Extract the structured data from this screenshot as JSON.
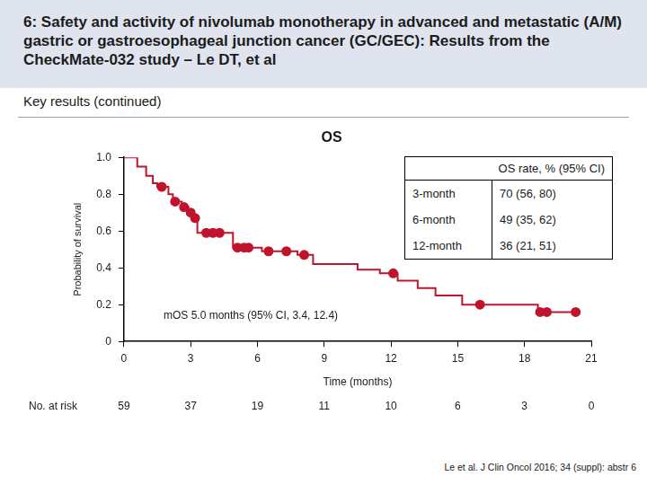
{
  "header": {
    "title": "6: Safety and activity of nivolumab monotherapy in advanced and metastatic (A/M) gastric or gastroesophageal junction cancer (GC/GEC): Results from the CheckMate-032 study – Le DT, et al",
    "subtitle": "Key results (continued)"
  },
  "chart_data": {
    "type": "line",
    "title": "OS",
    "xlabel": "Time (months)",
    "ylabel": "Probability of survival",
    "xlim": [
      0,
      21
    ],
    "xticks": [
      0,
      3,
      6,
      9,
      12,
      15,
      18,
      21
    ],
    "ylim": [
      0,
      1
    ],
    "yticks": [
      0,
      0.2,
      0.4,
      0.6,
      0.8,
      {
        "value": 1,
        "label": "1.0"
      }
    ],
    "grid": false,
    "annotations": [
      "mOS 5.0 months (95% CI, 3.4, 12.4)"
    ],
    "series": [
      {
        "type": "step",
        "color": "#c0142c",
        "marker": "none",
        "line_style": "solid",
        "x": [
          0,
          0.6,
          1.0,
          1.3,
          1.5,
          2.0,
          2.2,
          2.6,
          2.9,
          3.1,
          3.3,
          4.9,
          6.2,
          7.8,
          8.5,
          10.5,
          11.5,
          12.3,
          13.2,
          14.0,
          15.2,
          18.6,
          20.3
        ],
        "values": [
          1.0,
          0.95,
          0.9,
          0.86,
          0.84,
          0.8,
          0.76,
          0.73,
          0.7,
          0.67,
          0.59,
          0.51,
          0.49,
          0.47,
          0.42,
          0.39,
          0.37,
          0.33,
          0.29,
          0.25,
          0.2,
          0.16,
          0.16
        ]
      },
      {
        "type": "scatter",
        "color": "#c0142c",
        "marker": "circle",
        "x": [
          1.7,
          2.3,
          2.7,
          3.0,
          3.2,
          3.7,
          4.0,
          4.3,
          5.1,
          5.4,
          5.6,
          6.5,
          7.3,
          8.1,
          12.1,
          16.0,
          18.7,
          19.0,
          20.3
        ],
        "values": [
          0.84,
          0.76,
          0.73,
          0.7,
          0.67,
          0.59,
          0.59,
          0.59,
          0.51,
          0.51,
          0.51,
          0.49,
          0.49,
          0.47,
          0.37,
          0.2,
          0.16,
          0.16,
          0.16
        ]
      }
    ],
    "risk_table": {
      "label": "No. at risk",
      "x": [
        0,
        3,
        6,
        9,
        12,
        15,
        18,
        21
      ],
      "counts": [
        59,
        37,
        19,
        11,
        10,
        6,
        3,
        0
      ]
    }
  },
  "table": {
    "header": "OS rate, % (95% CI)",
    "rows": [
      [
        "3-month",
        "70 (56, 80)"
      ],
      [
        "6-month",
        "49 (35, 62)"
      ],
      [
        "12-month",
        "36 (21, 51)"
      ]
    ]
  },
  "citation": "Le et al. J Clin Oncol 2016; 34 (suppl): abstr 6"
}
